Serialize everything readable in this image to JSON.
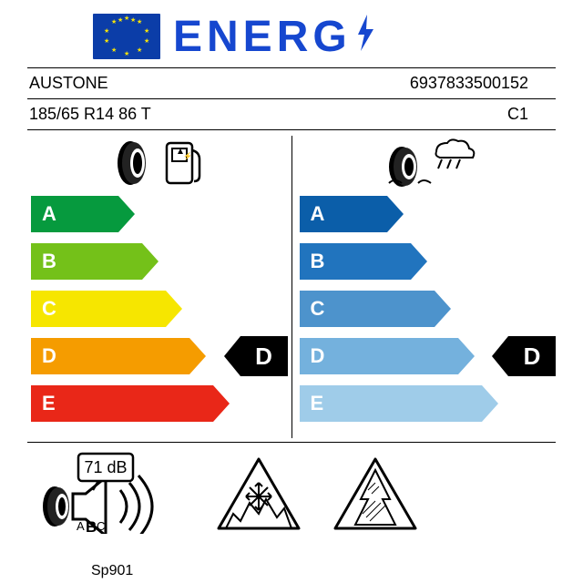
{
  "header_text": "ENERG",
  "eu_flag": {
    "bg": "#0b3da8",
    "star": "#f7e307"
  },
  "brand": "AUSTONE",
  "ean": "6937833500152",
  "size_line": "185/65 R14 86 T",
  "class_code": "C1",
  "model": "Sp901",
  "fuel": {
    "rating": "D",
    "rating_index": 3,
    "classes": [
      "A",
      "B",
      "C",
      "D",
      "E"
    ],
    "colors": [
      "#069a3e",
      "#74c119",
      "#f6e600",
      "#f59c00",
      "#e92718"
    ],
    "widths": [
      96,
      122,
      148,
      174,
      200
    ]
  },
  "wet": {
    "rating": "D",
    "rating_index": 3,
    "classes": [
      "A",
      "B",
      "C",
      "D",
      "E"
    ],
    "colors": [
      "#0b5ea9",
      "#2174be",
      "#4d93cc",
      "#74b1dd",
      "#9fcce9"
    ],
    "widths": [
      96,
      122,
      148,
      174,
      200
    ]
  },
  "noise": {
    "db": "71",
    "unit": "dB",
    "class_highlight": "B"
  },
  "colors": {
    "ink": "#000000",
    "blue": "#1647cf"
  }
}
